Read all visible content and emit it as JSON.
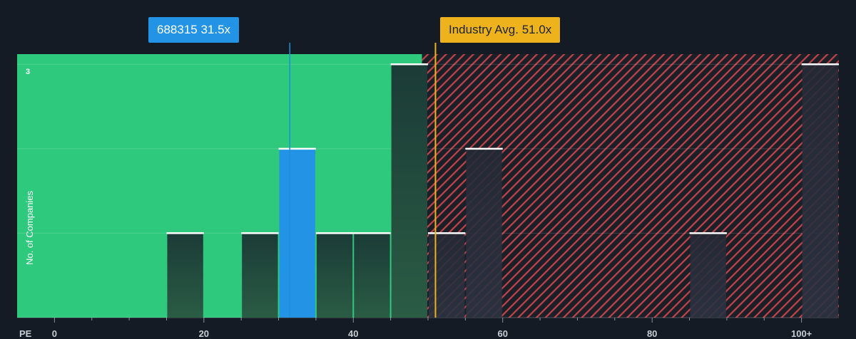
{
  "chart_data": {
    "type": "bar",
    "xlabel": "PE",
    "ylabel": "No. of Companies",
    "x_ticks": [
      "0",
      "20",
      "40",
      "60",
      "80",
      "100+"
    ],
    "y_tick_labels": [
      "3"
    ],
    "xlim": [
      -5,
      105
    ],
    "ylim": [
      0,
      3.12
    ],
    "bin_width": 5,
    "bars": [
      {
        "x0": 15,
        "x1": 20,
        "count": 1
      },
      {
        "x0": 25,
        "x1": 30,
        "count": 1
      },
      {
        "x0": 30,
        "x1": 35,
        "count": 2,
        "highlight": true
      },
      {
        "x0": 35,
        "x1": 40,
        "count": 1
      },
      {
        "x0": 40,
        "x1": 45,
        "count": 1
      },
      {
        "x0": 45,
        "x1": 50,
        "count": 3
      },
      {
        "x0": 50,
        "x1": 55,
        "count": 1
      },
      {
        "x0": 55,
        "x1": 60,
        "count": 2
      },
      {
        "x0": 85,
        "x1": 90,
        "count": 1
      },
      {
        "x0": 100,
        "x1": 105,
        "count": 3
      }
    ],
    "company": {
      "label": "688315 31.5x",
      "pe": 31.5
    },
    "industry_avg": {
      "label": "Industry Avg. 51.0x",
      "pe": 51.0
    },
    "fair_region_end": 49.2,
    "colors": {
      "background": "#151b24",
      "fair_region": "#2ec97d",
      "overvalued_hatch": "#d94a4f",
      "company": "#2394e5",
      "industry": "#eeb21d",
      "bar_dark": "#1d3a35",
      "bar_cap": "#ffffff"
    }
  }
}
